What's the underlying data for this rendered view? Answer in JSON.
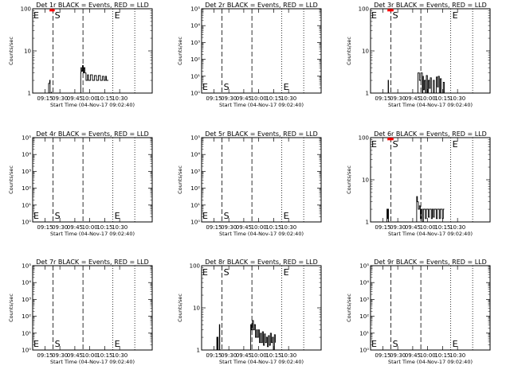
{
  "figure": {
    "xlabel": "Start Time (04-Nov-17 09:02:40)",
    "ylabel": "Counts/sec",
    "xticks": [
      "09:15",
      "09:30",
      "09:45",
      "10:00",
      "10:15",
      "10:30"
    ],
    "colors": {
      "events": "#000000",
      "lld": "#ff0000"
    }
  },
  "chart_data": [
    {
      "type": "line",
      "title": "Det 1r BLACK = Events, RED = LLD",
      "ylabel": "Counts/sec",
      "xlabel": "Start Time (04-Nov-17 09:02:40)",
      "yscale": "log",
      "ylim": [
        1,
        100
      ],
      "yticklabels": [
        "1",
        "10",
        "100"
      ],
      "yticks": [
        1,
        10,
        100
      ],
      "markers": [
        {
          "label": "E",
          "t": 0.8
        },
        {
          "label": "S",
          "t": 20.5
        },
        {
          "label": "E",
          "t": 80.5
        }
      ],
      "lld_segment": [
        17,
        22
      ],
      "series": [
        {
          "name": "Events",
          "color": "#000000",
          "points": [
            [
              15.5,
              1
            ],
            [
              16,
              1.7
            ],
            [
              17,
              2
            ],
            [
              17.5,
              1
            ],
            [
              18.5,
              1
            ],
            [
              18.8,
              1.05
            ],
            [
              19,
              1
            ]
          ]
        },
        {
          "name": "Events",
          "color": "#000000",
          "points": [
            [
              48,
              1
            ],
            [
              48.2,
              3
            ],
            [
              48.5,
              4
            ],
            [
              49,
              3.3
            ],
            [
              50,
              4.5
            ],
            [
              50.8,
              3
            ],
            [
              51.5,
              4
            ],
            [
              52.5,
              3
            ],
            [
              53.5,
              2
            ],
            [
              55,
              2.7
            ],
            [
              56,
              2
            ],
            [
              58,
              2.7
            ],
            [
              60,
              2
            ],
            [
              62,
              2.6
            ],
            [
              64,
              2
            ],
            [
              66,
              2.6
            ],
            [
              68,
              2
            ],
            [
              70,
              2.5
            ],
            [
              71.5,
              2
            ],
            [
              73,
              2.5
            ],
            [
              74,
              2
            ],
            [
              76,
              2
            ]
          ]
        }
      ]
    },
    {
      "type": "line",
      "title": "Det 2r BLACK = Events, RED = LLD",
      "ylabel": "Counts/sec",
      "xlabel": "Start Time (04-Nov-17 09:02:40)",
      "yscale": "log",
      "ylim": [
        1,
        100000
      ],
      "yticklabels": [
        "10⁰",
        "10¹",
        "10²",
        "10³",
        "10⁴",
        "10⁵"
      ],
      "yticks": [
        1,
        10,
        100,
        1000,
        10000,
        100000
      ],
      "markers": [
        {
          "label": "E",
          "t": 0.8
        },
        {
          "label": "S",
          "t": 20.5
        },
        {
          "label": "E",
          "t": 80.5
        }
      ],
      "series": []
    },
    {
      "type": "line",
      "title": "Det 3r BLACK = Events, RED = LLD",
      "ylabel": "Counts/sec",
      "xlabel": "Start Time (04-Nov-17 09:02:40)",
      "yscale": "log",
      "ylim": [
        1,
        100
      ],
      "yticklabels": [
        "1",
        "10",
        "100"
      ],
      "yticks": [
        1,
        10,
        100
      ],
      "markers": [
        {
          "label": "E",
          "t": 0.8
        },
        {
          "label": "S",
          "t": 20.5
        },
        {
          "label": "E",
          "t": 80.5
        }
      ],
      "lld_segment": [
        17,
        23
      ],
      "series": [
        {
          "name": "Events",
          "color": "#000000",
          "points": [
            [
              17.5,
              1
            ],
            [
              17.7,
              2
            ],
            [
              18,
              1
            ]
          ]
        },
        {
          "name": "Events",
          "color": "#000000",
          "points": [
            [
              47,
              1
            ],
            [
              47.5,
              3
            ],
            [
              49,
              2
            ],
            [
              50.5,
              3
            ],
            [
              52,
              1
            ],
            [
              52.5,
              2.5
            ],
            [
              53,
              1.2
            ],
            [
              54,
              2
            ],
            [
              55,
              1
            ],
            [
              56,
              2.6
            ],
            [
              57,
              1
            ],
            [
              58,
              2
            ],
            [
              59,
              1.3
            ],
            [
              60,
              2.3
            ],
            [
              61,
              1
            ],
            [
              63,
              2
            ],
            [
              64,
              1
            ],
            [
              66,
              2.4
            ],
            [
              67,
              1.4
            ],
            [
              68,
              2.5
            ],
            [
              69,
              1
            ],
            [
              70,
              2.2
            ],
            [
              71,
              1
            ],
            [
              73,
              1.8
            ],
            [
              74,
              1
            ]
          ]
        }
      ]
    },
    {
      "type": "line",
      "title": "Det 4r BLACK = Events, RED = LLD",
      "ylabel": "Counts/sec",
      "xlabel": "Start Time (04-Nov-17 09:02:40)",
      "yscale": "log",
      "ylim": [
        1,
        100000
      ],
      "yticklabels": [
        "10⁰",
        "10¹",
        "10²",
        "10³",
        "10⁴",
        "10⁵"
      ],
      "yticks": [
        1,
        10,
        100,
        1000,
        10000,
        100000
      ],
      "markers": [
        {
          "label": "E",
          "t": 0.8
        },
        {
          "label": "S",
          "t": 20.5
        },
        {
          "label": "E",
          "t": 80.5
        }
      ],
      "series": []
    },
    {
      "type": "line",
      "title": "Det 5r BLACK = Events, RED = LLD",
      "ylabel": "Counts/sec",
      "xlabel": "Start Time (04-Nov-17 09:02:40)",
      "yscale": "log",
      "ylim": [
        1,
        100000
      ],
      "yticklabels": [
        "10⁰",
        "10¹",
        "10²",
        "10³",
        "10⁴",
        "10⁵"
      ],
      "yticks": [
        1,
        10,
        100,
        1000,
        10000,
        100000
      ],
      "markers": [
        {
          "label": "E",
          "t": 0.8
        },
        {
          "label": "S",
          "t": 20.5
        },
        {
          "label": "E",
          "t": 80.5
        }
      ],
      "series": []
    },
    {
      "type": "line",
      "title": "Det 6r BLACK = Events, RED = LLD",
      "ylabel": "Counts/sec",
      "xlabel": "Start Time (04-Nov-17 09:02:40)",
      "yscale": "log",
      "ylim": [
        1,
        100
      ],
      "yticklabels": [
        "1",
        "10",
        "100"
      ],
      "yticks": [
        1,
        10,
        100
      ],
      "markers": [
        {
          "label": "E",
          "t": 0.8
        },
        {
          "label": "S",
          "t": 20.5
        },
        {
          "label": "E",
          "t": 80.5
        }
      ],
      "lld_segment": [
        17,
        23
      ],
      "series": [
        {
          "name": "Events",
          "color": "#000000",
          "points": [
            [
              16,
              1
            ],
            [
              16.5,
              2
            ],
            [
              17,
              1.2
            ],
            [
              17.5,
              2
            ],
            [
              18,
              1
            ]
          ]
        },
        {
          "name": "Events",
          "color": "#000000",
          "points": [
            [
              46,
              1
            ],
            [
              46.3,
              4
            ],
            [
              47,
              3
            ],
            [
              48,
              2
            ],
            [
              49,
              2.4
            ],
            [
              50,
              1.2
            ],
            [
              51,
              2
            ],
            [
              52,
              1
            ],
            [
              53,
              2
            ],
            [
              55,
              1.2
            ],
            [
              56,
              2
            ],
            [
              58,
              1.3
            ],
            [
              59,
              2
            ],
            [
              61,
              1.2
            ],
            [
              62,
              2
            ],
            [
              63,
              1.3
            ],
            [
              64,
              2
            ],
            [
              66,
              1.2
            ],
            [
              67,
              2
            ],
            [
              69,
              1.2
            ],
            [
              70,
              2
            ],
            [
              72,
              1.2
            ],
            [
              73,
              2
            ],
            [
              74,
              2
            ]
          ]
        }
      ]
    },
    {
      "type": "line",
      "title": "Det 7r BLACK = Events, RED = LLD",
      "ylabel": "Counts/sec",
      "xlabel": "Start Time (04-Nov-17 09:02:40)",
      "yscale": "log",
      "ylim": [
        1,
        100000
      ],
      "yticklabels": [
        "10⁰",
        "10¹",
        "10²",
        "10³",
        "10⁴",
        "10⁵"
      ],
      "yticks": [
        1,
        10,
        100,
        1000,
        10000,
        100000
      ],
      "markers": [
        {
          "label": "E",
          "t": 0.8
        },
        {
          "label": "S",
          "t": 20.5
        },
        {
          "label": "E",
          "t": 80.5
        }
      ],
      "series": []
    },
    {
      "type": "line",
      "title": "Det 8r BLACK = Events, RED = LLD",
      "ylabel": "Counts/sec",
      "xlabel": "Start Time (04-Nov-17 09:02:40)",
      "yscale": "log",
      "ylim": [
        1,
        100
      ],
      "yticklabels": [
        "1",
        "10",
        "100"
      ],
      "yticks": [
        1,
        10,
        100
      ],
      "markers": [
        {
          "label": "E",
          "t": 0.8
        },
        {
          "label": "S",
          "t": 20.5
        },
        {
          "label": "E",
          "t": 80.5
        }
      ],
      "series": [
        {
          "name": "Events",
          "color": "#000000",
          "points": [
            [
              15,
              1
            ],
            [
              15.3,
              2
            ],
            [
              15.8,
              1
            ],
            [
              16.2,
              2
            ],
            [
              16.5,
              1
            ],
            [
              17.5,
              1
            ],
            [
              17.8,
              4
            ],
            [
              18.2,
              1
            ]
          ]
        },
        {
          "name": "Events",
          "color": "#000000",
          "points": [
            [
              49,
              1
            ],
            [
              49.3,
              4
            ],
            [
              50,
              3
            ],
            [
              51,
              5
            ],
            [
              52,
              3
            ],
            [
              53,
              4
            ],
            [
              54,
              2
            ],
            [
              55,
              3
            ],
            [
              56,
              2
            ],
            [
              57,
              3
            ],
            [
              58,
              1.5
            ],
            [
              59,
              2.5
            ],
            [
              60,
              1.5
            ],
            [
              61,
              2.7
            ],
            [
              62,
              1.3
            ],
            [
              63,
              2.4
            ],
            [
              64,
              1.5
            ],
            [
              65,
              2
            ],
            [
              66,
              1.2
            ],
            [
              67,
              2.2
            ],
            [
              68,
              1.3
            ],
            [
              69,
              2.5
            ],
            [
              70,
              1.5
            ],
            [
              71,
              2
            ],
            [
              72,
              1
            ],
            [
              73,
              2.3
            ],
            [
              74,
              1.5
            ]
          ]
        }
      ]
    },
    {
      "type": "line",
      "title": "Det 9r BLACK = Events, RED = LLD",
      "ylabel": "Counts/sec",
      "xlabel": "Start Time (04-Nov-17 09:02:40)",
      "yscale": "log",
      "ylim": [
        1,
        100000
      ],
      "yticklabels": [
        "10⁰",
        "10¹",
        "10²",
        "10³",
        "10⁴",
        "10⁵"
      ],
      "yticks": [
        1,
        10,
        100,
        1000,
        10000,
        100000
      ],
      "markers": [
        {
          "label": "E",
          "t": 0.8
        },
        {
          "label": "S",
          "t": 20.5
        },
        {
          "label": "E",
          "t": 80.5
        }
      ],
      "series": []
    }
  ]
}
